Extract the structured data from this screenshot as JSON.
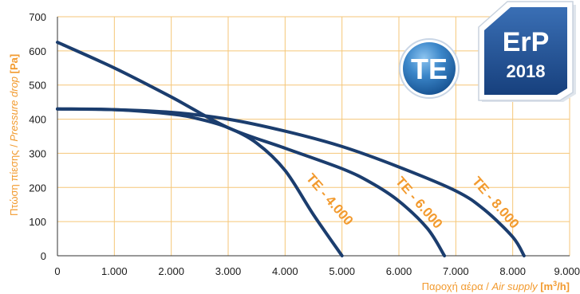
{
  "chart_data": {
    "type": "line",
    "xlim": [
      0,
      9000
    ],
    "ylim": [
      0,
      700
    ],
    "x_ticks": [
      0,
      1000,
      2000,
      3000,
      4000,
      5000,
      6000,
      7000,
      8000,
      9000
    ],
    "x_tick_labels": [
      "0",
      "1.000",
      "2.000",
      "3.000",
      "4.000",
      "5.000",
      "6.000",
      "7.000",
      "8.000",
      "9.000"
    ],
    "y_ticks": [
      0,
      100,
      200,
      300,
      400,
      500,
      600,
      700
    ],
    "y_tick_labels": [
      "0",
      "100",
      "200",
      "300",
      "400",
      "500",
      "600",
      "700"
    ],
    "grid": true,
    "xlabel": {
      "greek": "Παροχή αέρα / ",
      "english": "Air supply",
      "unit_prefix": "[m",
      "unit_sup": "3",
      "unit_suffix": "/h]"
    },
    "ylabel": {
      "greek": "Πτώση πίεσης / ",
      "english": "Pressure drop",
      "unit": "[Pa]"
    },
    "series": [
      {
        "name": "TE - 4.000",
        "points": [
          [
            0,
            430
          ],
          [
            1000,
            428
          ],
          [
            2000,
            415
          ],
          [
            2500,
            400
          ],
          [
            3000,
            375
          ],
          [
            3500,
            330
          ],
          [
            4000,
            250
          ],
          [
            4500,
            120
          ],
          [
            5000,
            0
          ]
        ]
      },
      {
        "name": "TE - 6.000",
        "points": [
          [
            0,
            625
          ],
          [
            1000,
            550
          ],
          [
            2000,
            465
          ],
          [
            3000,
            375
          ],
          [
            4000,
            315
          ],
          [
            5000,
            255
          ],
          [
            5500,
            215
          ],
          [
            6000,
            160
          ],
          [
            6500,
            80
          ],
          [
            6800,
            0
          ]
        ]
      },
      {
        "name": "TE - 8.000",
        "points": [
          [
            0,
            430
          ],
          [
            1000,
            428
          ],
          [
            2000,
            420
          ],
          [
            3000,
            400
          ],
          [
            4000,
            365
          ],
          [
            5000,
            320
          ],
          [
            6000,
            260
          ],
          [
            7000,
            190
          ],
          [
            7500,
            135
          ],
          [
            8000,
            55
          ],
          [
            8200,
            0
          ]
        ]
      }
    ],
    "colors": {
      "curve": "#1b3d6e",
      "grid": "#f5c678",
      "label": "#f29a2e"
    }
  },
  "badges": {
    "te": {
      "text": "TE",
      "color": "#2a73b5"
    },
    "erp": {
      "line1": "ErP",
      "line2": "2018",
      "color": "#1e4a8a"
    }
  }
}
